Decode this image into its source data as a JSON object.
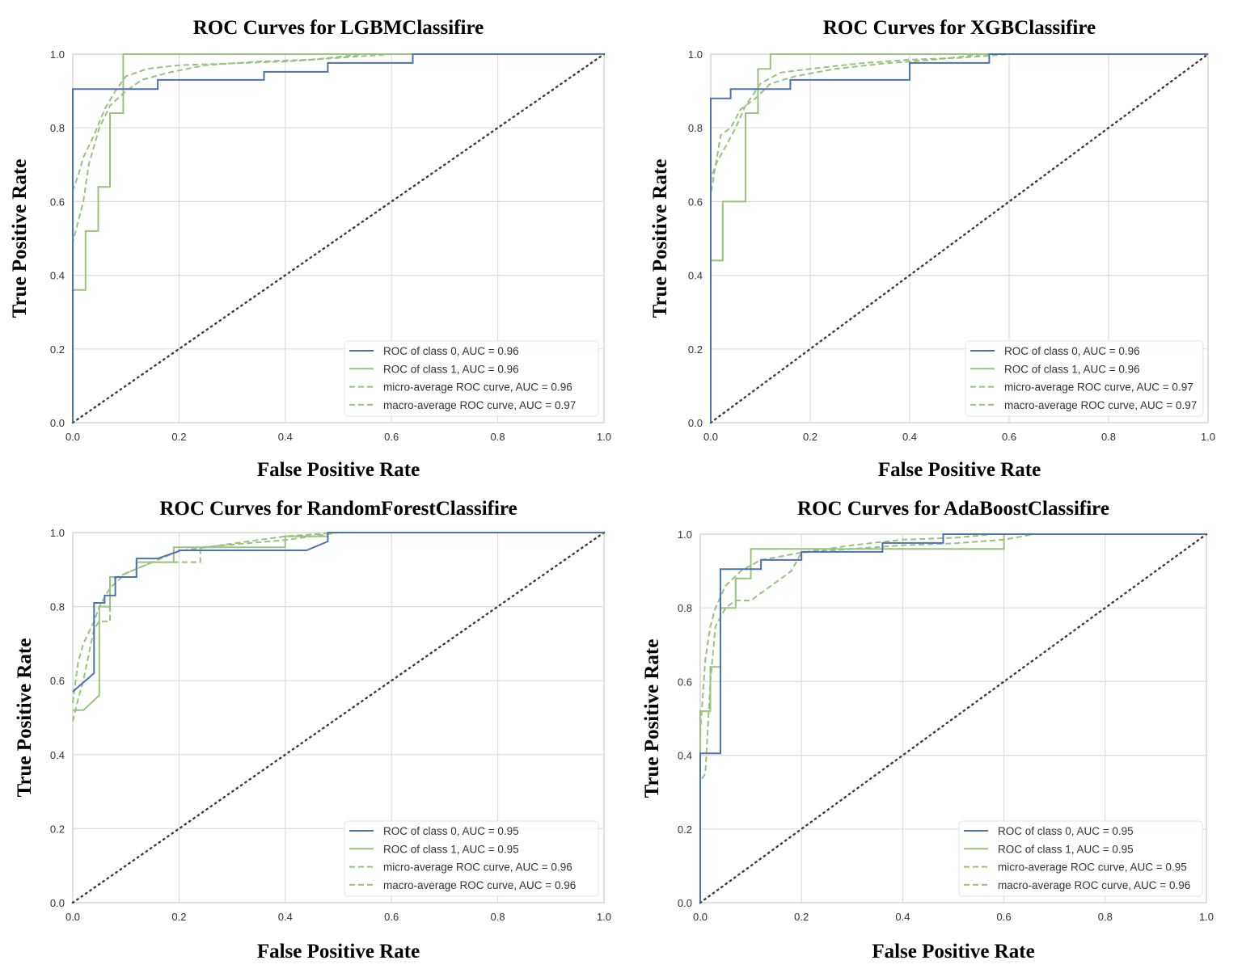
{
  "colors": {
    "class0": "#4c72b0",
    "class1": "#99c27e",
    "micro": "#99c27e",
    "macro": "#99c27e",
    "diagonal": "#3a3a3a",
    "grid": "#dddddd",
    "frame": "#cccccc"
  },
  "chart_data": [
    {
      "type": "line",
      "title": "ROC Curves for LGBMClassifire",
      "xlabel": "False Positive Rate",
      "ylabel": "True Positive Rate",
      "xlim": [
        0,
        1
      ],
      "ylim": [
        0,
        1
      ],
      "xticks": [
        "0.0",
        "0.2",
        "0.4",
        "0.6",
        "0.8",
        "1.0"
      ],
      "yticks": [
        "0.0",
        "0.2",
        "0.4",
        "0.6",
        "0.8",
        "1.0"
      ],
      "grid": true,
      "legend_position": "bottom-right",
      "series": [
        {
          "name": "ROC of class 0, AUC = 0.96",
          "style": "solid",
          "color": "#4c72b0",
          "x": [
            0,
            0,
            0.16,
            0.16,
            0.36,
            0.36,
            0.48,
            0.48,
            0.64,
            0.64,
            1.0
          ],
          "y": [
            0,
            0.905,
            0.905,
            0.93,
            0.93,
            0.952,
            0.952,
            0.976,
            0.976,
            1.0,
            1.0
          ]
        },
        {
          "name": "ROC of class 1, AUC = 0.96",
          "style": "solid",
          "color": "#99c27e",
          "x": [
            0,
            0,
            0.024,
            0.024,
            0.048,
            0.048,
            0.07,
            0.07,
            0.095,
            0.095,
            1.0
          ],
          "y": [
            0,
            0.36,
            0.36,
            0.52,
            0.52,
            0.64,
            0.64,
            0.84,
            0.84,
            1.0,
            1.0
          ]
        },
        {
          "name": "micro-average ROC curve, AUC = 0.96",
          "style": "dashed",
          "color": "#99c27e",
          "x": [
            0,
            0,
            0.01,
            0.02,
            0.04,
            0.06,
            0.08,
            0.1,
            0.14,
            0.2,
            0.3,
            0.4,
            0.5,
            0.6,
            1.0
          ],
          "y": [
            0,
            0.63,
            0.67,
            0.72,
            0.78,
            0.85,
            0.9,
            0.94,
            0.96,
            0.97,
            0.975,
            0.98,
            0.99,
            1.0,
            1.0
          ]
        },
        {
          "name": "macro-average ROC curve, AUC = 0.97",
          "style": "dashed",
          "color": "#99c27e",
          "x": [
            0,
            0,
            0.02,
            0.03,
            0.05,
            0.07,
            0.1,
            0.13,
            0.18,
            0.25,
            0.35,
            0.45,
            0.55,
            1.0
          ],
          "y": [
            0,
            0.49,
            0.6,
            0.7,
            0.8,
            0.86,
            0.9,
            0.93,
            0.95,
            0.97,
            0.98,
            0.985,
            1.0,
            1.0
          ]
        }
      ],
      "diagonal": "Chance (dotted)"
    },
    {
      "type": "line",
      "title": "ROC Curves for XGBClassifire",
      "xlabel": "False Positive Rate",
      "ylabel": "True Positive Rate",
      "xlim": [
        0,
        1
      ],
      "ylim": [
        0,
        1
      ],
      "xticks": [
        "0.0",
        "0.2",
        "0.4",
        "0.6",
        "0.8",
        "1.0"
      ],
      "yticks": [
        "0.0",
        "0.2",
        "0.4",
        "0.6",
        "0.8",
        "1.0"
      ],
      "grid": true,
      "legend_position": "bottom-right",
      "series": [
        {
          "name": "ROC of class 0, AUC = 0.96",
          "style": "solid",
          "color": "#4c72b0",
          "x": [
            0,
            0,
            0.04,
            0.04,
            0.16,
            0.16,
            0.4,
            0.4,
            0.56,
            0.56,
            1.0
          ],
          "y": [
            0,
            0.88,
            0.88,
            0.905,
            0.905,
            0.93,
            0.93,
            0.976,
            0.976,
            1.0,
            1.0
          ]
        },
        {
          "name": "ROC of class 1, AUC = 0.96",
          "style": "solid",
          "color": "#99c27e",
          "x": [
            0,
            0,
            0.024,
            0.024,
            0.07,
            0.07,
            0.095,
            0.095,
            0.12,
            0.12,
            1.0
          ],
          "y": [
            0,
            0.44,
            0.44,
            0.6,
            0.6,
            0.84,
            0.84,
            0.96,
            0.96,
            1.0,
            1.0
          ]
        },
        {
          "name": "micro-average ROC curve, AUC = 0.97",
          "style": "dashed",
          "color": "#99c27e",
          "x": [
            0,
            0,
            0.01,
            0.03,
            0.05,
            0.07,
            0.1,
            0.14,
            0.2,
            0.3,
            0.4,
            0.5,
            0.6,
            1.0
          ],
          "y": [
            0,
            0.66,
            0.7,
            0.75,
            0.8,
            0.86,
            0.92,
            0.95,
            0.96,
            0.975,
            0.985,
            0.99,
            1.0,
            1.0
          ]
        },
        {
          "name": "macro-average ROC curve, AUC = 0.97",
          "style": "dashed",
          "color": "#99c27e",
          "x": [
            0,
            0,
            0.01,
            0.02,
            0.04,
            0.06,
            0.09,
            0.12,
            0.17,
            0.25,
            0.35,
            0.45,
            0.55,
            1.0
          ],
          "y": [
            0,
            0.62,
            0.7,
            0.78,
            0.8,
            0.85,
            0.88,
            0.92,
            0.94,
            0.96,
            0.975,
            0.985,
            1.0,
            1.0
          ]
        }
      ],
      "diagonal": "Chance (dotted)"
    },
    {
      "type": "line",
      "title": "ROC Curves for RandomForestClassifire",
      "xlabel": "False Positive Rate",
      "ylabel": "True Positive Rate",
      "xlim": [
        0,
        1
      ],
      "ylim": [
        0,
        1
      ],
      "xticks": [
        "0.0",
        "0.2",
        "0.4",
        "0.6",
        "0.8",
        "1.0"
      ],
      "yticks": [
        "0.0",
        "0.2",
        "0.4",
        "0.6",
        "0.8",
        "1.0"
      ],
      "grid": true,
      "legend_position": "bottom-right",
      "series": [
        {
          "name": "ROC of class 0, AUC = 0.95",
          "style": "solid",
          "color": "#4c72b0",
          "x": [
            0,
            0.04,
            0.04,
            0.06,
            0.06,
            0.08,
            0.08,
            0.12,
            0.12,
            0.16,
            0.16,
            0.2,
            0.2,
            0.44,
            0.48,
            0.48,
            1.0
          ],
          "y": [
            0.57,
            0.62,
            0.81,
            0.81,
            0.83,
            0.83,
            0.88,
            0.88,
            0.93,
            0.93,
            0.93,
            0.95,
            0.952,
            0.952,
            0.976,
            1.0,
            1.0
          ]
        },
        {
          "name": "ROC of class 1, AUC = 0.95",
          "style": "solid",
          "color": "#99c27e",
          "x": [
            0,
            0.02,
            0.05,
            0.05,
            0.07,
            0.07,
            0.12,
            0.12,
            0.19,
            0.19,
            0.4,
            0.4,
            0.48,
            0.48,
            1.0
          ],
          "y": [
            0.52,
            0.52,
            0.56,
            0.8,
            0.8,
            0.88,
            0.88,
            0.92,
            0.92,
            0.96,
            0.96,
            0.99,
            0.99,
            1.0,
            1.0
          ]
        },
        {
          "name": "micro-average ROC curve, AUC = 0.96",
          "style": "dashed",
          "color": "#99c27e",
          "x": [
            0,
            0.01,
            0.02,
            0.03,
            0.04,
            0.05,
            0.07,
            0.1,
            0.15,
            0.2,
            0.3,
            0.4,
            0.5,
            1.0
          ],
          "y": [
            0.54,
            0.65,
            0.7,
            0.73,
            0.76,
            0.8,
            0.85,
            0.89,
            0.92,
            0.95,
            0.97,
            0.99,
            1.0,
            1.0
          ]
        },
        {
          "name": "macro-average ROC curve, AUC = 0.96",
          "style": "dashed",
          "color": "#99c27e",
          "x": [
            0,
            0.01,
            0.02,
            0.04,
            0.05,
            0.07,
            0.07,
            0.1,
            0.15,
            0.24,
            0.24,
            0.4,
            0.5,
            1.0
          ],
          "y": [
            0.49,
            0.55,
            0.6,
            0.74,
            0.76,
            0.76,
            0.87,
            0.89,
            0.92,
            0.92,
            0.96,
            0.98,
            1.0,
            1.0
          ]
        }
      ],
      "diagonal": "Chance (dotted)"
    },
    {
      "type": "line",
      "title": "ROC Curves for AdaBoostClassifire",
      "xlabel": "False Positive Rate",
      "ylabel": "True Positive Rate",
      "xlim": [
        0,
        1
      ],
      "ylim": [
        0,
        1
      ],
      "xticks": [
        "0.0",
        "0.2",
        "0.4",
        "0.6",
        "0.8",
        "1.0"
      ],
      "yticks": [
        "0.0",
        "0.2",
        "0.4",
        "0.6",
        "0.8",
        "1.0"
      ],
      "grid": true,
      "legend_position": "bottom-right",
      "series": [
        {
          "name": "ROC of class 0, AUC = 0.95",
          "style": "solid",
          "color": "#4c72b0",
          "x": [
            0,
            0,
            0.04,
            0.04,
            0.12,
            0.12,
            0.2,
            0.2,
            0.36,
            0.36,
            0.48,
            0.48,
            1.0
          ],
          "y": [
            0,
            0.405,
            0.405,
            0.905,
            0.905,
            0.93,
            0.93,
            0.952,
            0.952,
            0.976,
            0.976,
            1.0,
            1.0
          ]
        },
        {
          "name": "ROC of class 1, AUC = 0.95",
          "style": "solid",
          "color": "#99c27e",
          "x": [
            0,
            0,
            0.02,
            0.02,
            0.04,
            0.04,
            0.07,
            0.07,
            0.1,
            0.1,
            0.36,
            0.36,
            0.6,
            0.6,
            1.0
          ],
          "y": [
            0,
            0.52,
            0.52,
            0.64,
            0.64,
            0.8,
            0.8,
            0.88,
            0.88,
            0.96,
            0.96,
            0.96,
            0.96,
            1.0,
            1.0
          ]
        },
        {
          "name": "micro-average ROC curve, AUC = 0.95",
          "style": "dashed",
          "color": "#99c27e",
          "x": [
            0,
            0,
            0.01,
            0.02,
            0.03,
            0.05,
            0.08,
            0.12,
            0.2,
            0.3,
            0.4,
            0.5,
            0.58,
            1.0
          ],
          "y": [
            0,
            0.46,
            0.66,
            0.75,
            0.8,
            0.86,
            0.9,
            0.93,
            0.95,
            0.97,
            0.985,
            0.99,
            1.0,
            1.0
          ]
        },
        {
          "name": "macro-average ROC curve, AUC = 0.96",
          "style": "dashed",
          "color": "#99c27e",
          "x": [
            0,
            0,
            0.01,
            0.02,
            0.03,
            0.05,
            0.07,
            0.1,
            0.14,
            0.18,
            0.2,
            0.3,
            0.4,
            0.5,
            0.6,
            0.66,
            1.0
          ],
          "y": [
            0,
            0.33,
            0.35,
            0.6,
            0.75,
            0.8,
            0.82,
            0.82,
            0.86,
            0.9,
            0.95,
            0.96,
            0.97,
            0.975,
            0.985,
            1.0,
            1.0
          ]
        }
      ],
      "diagonal": "Chance (dotted)"
    }
  ]
}
